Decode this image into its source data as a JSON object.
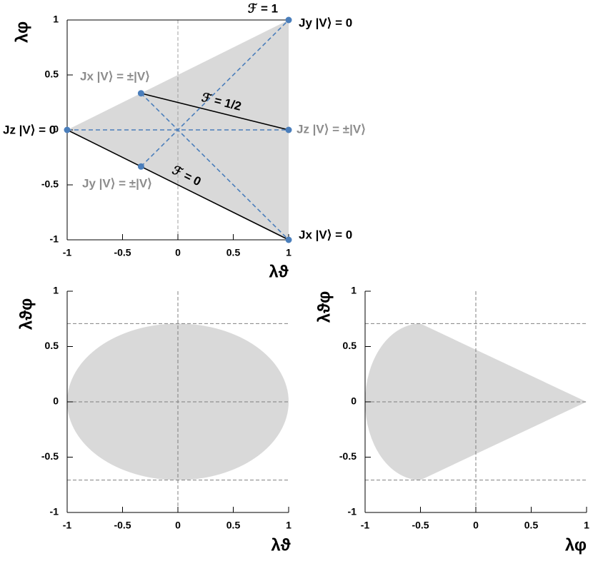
{
  "chart_data": [
    {
      "type": "area",
      "xlabel": "λϑ",
      "ylabel": "λφ",
      "xlim": [
        -1,
        1
      ],
      "ylim": [
        -1,
        1
      ],
      "xticks": [
        -1,
        -0.5,
        0,
        0.5,
        1
      ],
      "yticks": [
        -1,
        -0.5,
        0,
        0.5,
        1
      ],
      "region": {
        "x": [
          -1,
          1,
          1
        ],
        "y": [
          0,
          1,
          -1
        ],
        "color": "#d9d9d9"
      },
      "vlines": [
        0
      ],
      "ref_color": "#a0a0a0",
      "segments": [
        {
          "x": [
            -0.333,
            1
          ],
          "y": [
            0.333,
            0
          ],
          "color": "#000000",
          "dashed": false,
          "label": "ℱ = 1/2"
        },
        {
          "x": [
            -1,
            1
          ],
          "y": [
            0,
            -1
          ],
          "color": "#000000",
          "dashed": false,
          "label": "ℱ = 0"
        },
        {
          "x": [
            -1,
            1
          ],
          "y": [
            0,
            0
          ],
          "color": "#4a7ebb",
          "dashed": true
        },
        {
          "x": [
            -0.333,
            1
          ],
          "y": [
            0.333,
            -1
          ],
          "color": "#4a7ebb",
          "dashed": true
        },
        {
          "x": [
            -0.333,
            1
          ],
          "y": [
            -0.333,
            1
          ],
          "color": "#4a7ebb",
          "dashed": true
        }
      ],
      "points": {
        "x": [
          -1,
          -0.333,
          -0.333,
          1,
          1,
          1
        ],
        "y": [
          0,
          0.333,
          -0.333,
          1,
          0,
          -1
        ],
        "color": "#4a7ebb"
      },
      "annotations": [
        {
          "text": "ℱ = 1",
          "color": "#000000"
        },
        {
          "text": "Jy |V⟩ = 0",
          "color": "#000000"
        },
        {
          "text": "Jx |V⟩ = ±|V⟩",
          "color": "#8c8c8c"
        },
        {
          "text": "Jz |V⟩ = 0",
          "color": "#000000"
        },
        {
          "text": "Jz |V⟩ = ±|V⟩",
          "color": "#8c8c8c"
        },
        {
          "text": "Jy |V⟩ = ±|V⟩",
          "color": "#8c8c8c"
        },
        {
          "text": "Jx |V⟩ = 0",
          "color": "#000000"
        }
      ]
    },
    {
      "type": "area",
      "xlabel": "λϑ",
      "ylabel": "λϑφ",
      "xlim": [
        -1,
        1
      ],
      "ylim": [
        -1,
        1
      ],
      "xticks": [
        -1,
        -0.5,
        0,
        0.5,
        1
      ],
      "yticks": [
        -1,
        -0.5,
        0,
        0.5,
        1
      ],
      "ellipse": {
        "cx": 0,
        "cy": 0,
        "rx": 1,
        "ry": 0.707,
        "color": "#d9d9d9"
      },
      "hlines": [
        0.707,
        0,
        -0.707
      ],
      "vlines": [
        0
      ],
      "ref_color": "#808080"
    },
    {
      "type": "area",
      "xlabel": "λφ",
      "ylabel": "λϑφ",
      "xlim": [
        -1,
        1
      ],
      "ylim": [
        -1,
        1
      ],
      "xticks": [
        -1,
        -0.5,
        0,
        0.5,
        1
      ],
      "yticks": [
        -1,
        -0.5,
        0,
        0.5,
        1
      ],
      "ellipse": {
        "cx": -0.5,
        "cy": 0,
        "rx": 0.5,
        "ry": 0.707,
        "half": "left",
        "color": "#d9d9d9"
      },
      "region": {
        "x": [
          -0.5,
          1,
          -0.5
        ],
        "y": [
          0.707,
          0,
          -0.707
        ],
        "color": "#d9d9d9"
      },
      "hlines": [
        0.707,
        0,
        -0.707
      ],
      "vlines": [
        0
      ],
      "ref_color": "#808080"
    }
  ]
}
